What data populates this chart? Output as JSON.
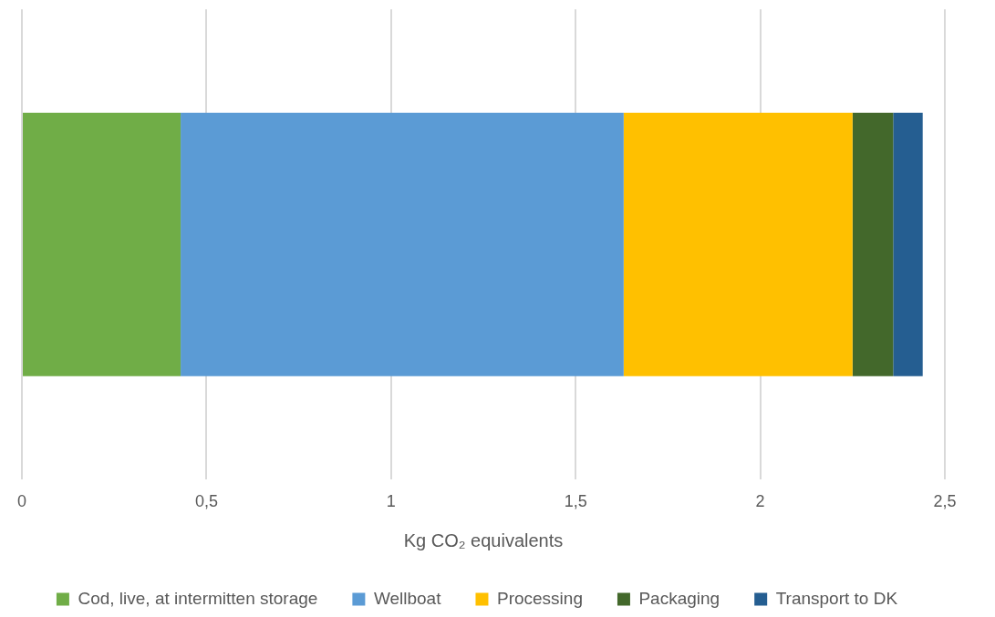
{
  "chart_data": {
    "type": "bar",
    "orientation": "horizontal",
    "stacked": true,
    "xlabel": "Kg CO₂ equivalents",
    "categories": [
      null
    ],
    "series": [
      {
        "name": "Cod, live, at intermitten storage",
        "color": "#70ad47",
        "values": [
          0.43
        ]
      },
      {
        "name": "Wellboat",
        "color": "#5b9bd5",
        "values": [
          1.2
        ]
      },
      {
        "name": "Processing",
        "color": "#ffc000",
        "values": [
          0.62
        ]
      },
      {
        "name": "Packaging",
        "color": "#43682b",
        "values": [
          0.11
        ]
      },
      {
        "name": "Transport to DK",
        "color": "#255e91",
        "values": [
          0.08
        ]
      }
    ],
    "xlim": [
      0,
      2.5
    ],
    "xticks": [
      0,
      {
        "value": 0.5,
        "label": "0,5"
      },
      1,
      {
        "value": 1.5,
        "label": "1,5"
      },
      2,
      {
        "value": 2.5,
        "label": "2,5"
      }
    ],
    "grid": "x",
    "legend": "bottom"
  }
}
